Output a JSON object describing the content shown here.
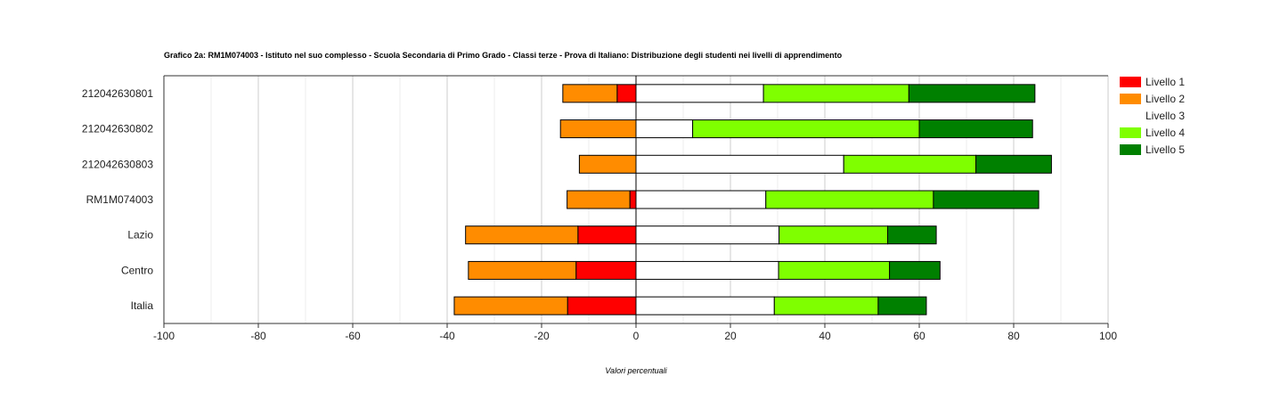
{
  "chart_data": {
    "type": "bar",
    "orientation": "horizontal",
    "stacked": "diverging",
    "title": "Grafico 2a: RM1M074003 - Istituto nel suo complesso - Scuola Secondaria di Primo Grado - Classi terze - Prova di Italiano: Distribuzione degli studenti nei livelli di apprendimento",
    "xlabel": "Valori percentuali",
    "ylabel": "",
    "xlim": [
      -100,
      100
    ],
    "xticks": [
      -100,
      -80,
      -60,
      -40,
      -20,
      0,
      20,
      40,
      60,
      80,
      100
    ],
    "grid": true,
    "legend_position": "right",
    "categories": [
      "212042630801",
      "212042630802",
      "212042630803",
      "RM1M074003",
      "Lazio",
      "Centro",
      "Italia"
    ],
    "series": [
      {
        "name": "Livello 1",
        "color": "#ff0000",
        "side": "negative",
        "values": [
          4.0,
          0.0,
          0.0,
          1.3,
          12.3,
          12.7,
          14.5
        ]
      },
      {
        "name": "Livello 2",
        "color": "#ff8c00",
        "side": "negative",
        "values": [
          11.5,
          16.0,
          12.0,
          13.3,
          23.8,
          22.8,
          24.0
        ]
      },
      {
        "name": "Livello 3",
        "color": "#ffffff",
        "side": "positive",
        "values": [
          27.0,
          12.0,
          44.0,
          27.5,
          30.3,
          30.2,
          29.3
        ]
      },
      {
        "name": "Livello 4",
        "color": "#7fff00",
        "side": "positive",
        "values": [
          30.8,
          48.0,
          28.0,
          35.5,
          23.0,
          23.5,
          22.0
        ]
      },
      {
        "name": "Livello 5",
        "color": "#008000",
        "side": "positive",
        "values": [
          26.7,
          24.0,
          16.0,
          22.3,
          10.3,
          10.7,
          10.2
        ]
      }
    ]
  }
}
